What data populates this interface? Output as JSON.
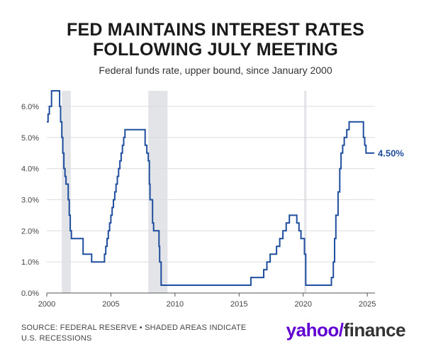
{
  "title_line1": "FED MAINTAINS INTEREST RATES",
  "title_line2": "FOLLOWING JULY MEETING",
  "subtitle": "Federal funds rate, upper bound, since January 2000",
  "source_line1": "SOURCE: FEDERAL RESERVE • SHADED AREAS INDICATE",
  "source_line2": "U.S. RECESSIONS",
  "brand": {
    "yahoo": "yahoo",
    "slash": "/",
    "finance": "finance"
  },
  "colors": {
    "line": "#1f4e9e",
    "recession": "#e2e4e8",
    "grid": "#dcdcdc",
    "axis": "#555555"
  },
  "chart_data": {
    "type": "line",
    "title": "FED MAINTAINS INTEREST RATES FOLLOWING JULY MEETING",
    "subtitle": "Federal funds rate, upper bound, since January 2000",
    "xlabel": "",
    "ylabel": "",
    "xlim": [
      2000,
      2025.6
    ],
    "ylim": [
      0,
      6.5
    ],
    "grid": true,
    "line_style": "step",
    "x_ticks": [
      2000,
      2005,
      2010,
      2015,
      2020,
      2025
    ],
    "x_tick_labels": [
      "2000",
      "2005",
      "2010",
      "2015",
      "2020",
      "2025"
    ],
    "y_ticks": [
      0,
      1,
      2,
      3,
      4,
      5,
      6
    ],
    "y_tick_labels": [
      "0.0%",
      "1.0%",
      "2.0%",
      "3.0%",
      "4.0%",
      "5.0%",
      "6.0%"
    ],
    "recessions": [
      [
        2001.17,
        2001.87
      ],
      [
        2007.92,
        2009.42
      ],
      [
        2020.08,
        2020.25
      ]
    ],
    "end_label": "4.50%",
    "series": [
      {
        "name": "Federal funds rate, upper bound",
        "x": [
          2000.0,
          2000.1,
          2000.2,
          2000.37,
          2001.0,
          2001.08,
          2001.17,
          2001.25,
          2001.33,
          2001.42,
          2001.5,
          2001.67,
          2001.75,
          2001.83,
          2001.92,
          2002.83,
          2003.5,
          2004.5,
          2004.6,
          2004.7,
          2004.8,
          2004.9,
          2005.0,
          2005.1,
          2005.2,
          2005.3,
          2005.4,
          2005.5,
          2005.6,
          2005.7,
          2005.8,
          2005.9,
          2006.0,
          2006.1,
          2006.2,
          2006.3,
          2006.4,
          2006.5,
          2007.67,
          2007.8,
          2007.92,
          2008.0,
          2008.05,
          2008.25,
          2008.33,
          2008.75,
          2008.8,
          2008.92,
          2009.0,
          2015.92,
          2016.92,
          2017.17,
          2017.42,
          2017.92,
          2018.17,
          2018.42,
          2018.67,
          2018.92,
          2019.5,
          2019.67,
          2019.83,
          2020.1,
          2020.2,
          2022.2,
          2022.35,
          2022.45,
          2022.55,
          2022.72,
          2022.85,
          2022.95,
          2023.08,
          2023.2,
          2023.4,
          2023.58,
          2024.7,
          2024.8,
          2024.9,
          2025.55
        ],
        "values": [
          5.5,
          5.75,
          6.0,
          6.5,
          6.0,
          5.5,
          5.0,
          4.5,
          4.0,
          3.75,
          3.5,
          3.0,
          2.5,
          2.0,
          1.75,
          1.25,
          1.0,
          1.25,
          1.5,
          1.75,
          2.0,
          2.25,
          2.5,
          2.75,
          3.0,
          3.25,
          3.5,
          3.75,
          4.0,
          4.25,
          4.5,
          4.75,
          5.0,
          5.25,
          5.25,
          5.25,
          5.25,
          5.25,
          4.75,
          4.5,
          4.25,
          3.5,
          3.0,
          2.25,
          2.0,
          1.5,
          1.0,
          0.25,
          0.25,
          0.5,
          0.75,
          1.0,
          1.25,
          1.5,
          1.75,
          2.0,
          2.25,
          2.5,
          2.25,
          2.0,
          1.75,
          1.25,
          0.25,
          0.5,
          1.0,
          1.75,
          2.5,
          3.25,
          4.0,
          4.5,
          4.75,
          5.0,
          5.25,
          5.5,
          5.0,
          4.75,
          4.5,
          4.5
        ]
      }
    ]
  }
}
